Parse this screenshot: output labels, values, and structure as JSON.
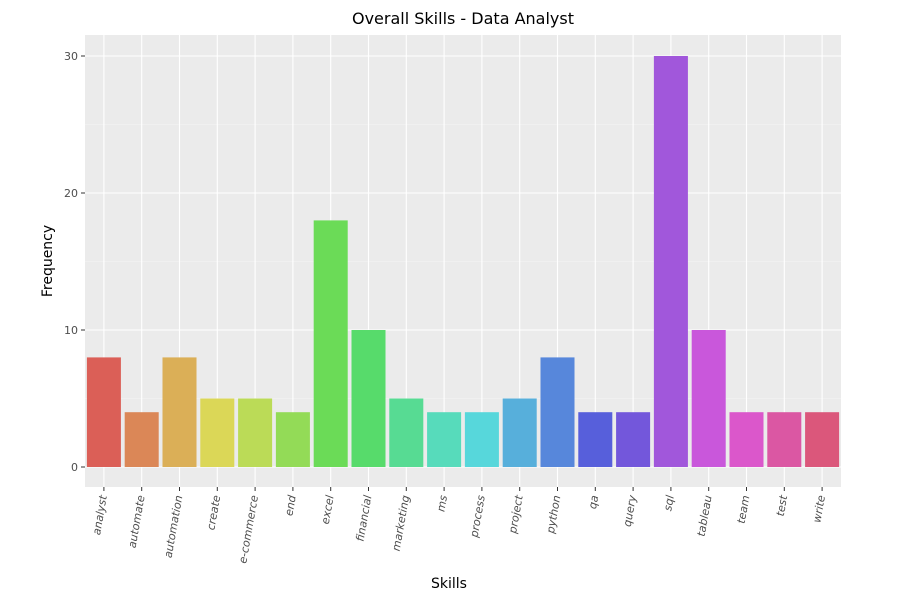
{
  "chart_data": {
    "type": "bar",
    "title": "Overall Skills - Data Analyst",
    "xlabel": "Skills",
    "ylabel": "Frequency",
    "ylim": [
      0,
      31.5
    ],
    "yticks": [
      0,
      10,
      20,
      30
    ],
    "grid": true,
    "categories": [
      "analyst",
      "automate",
      "automation",
      "create",
      "e-commerce",
      "end",
      "excel",
      "financial",
      "marketing",
      "ms",
      "process",
      "project",
      "python",
      "qa",
      "query",
      "sql",
      "tableau",
      "team",
      "test",
      "write"
    ],
    "values": [
      8,
      4,
      8,
      5,
      5,
      4,
      18,
      10,
      5,
      4,
      4,
      5,
      8,
      4,
      4,
      30,
      10,
      4,
      4,
      4
    ],
    "colors": [
      "#db5f57",
      "#db8757",
      "#dbaf57",
      "#dbd757",
      "#bbdb57",
      "#93db57",
      "#6bdb57",
      "#57db6b",
      "#57db93",
      "#57dbbb",
      "#57d7db",
      "#57afdb",
      "#5787db",
      "#575fdb",
      "#7357db",
      "#a157db",
      "#c957db",
      "#db57cb",
      "#db57a3",
      "#db577b"
    ]
  }
}
